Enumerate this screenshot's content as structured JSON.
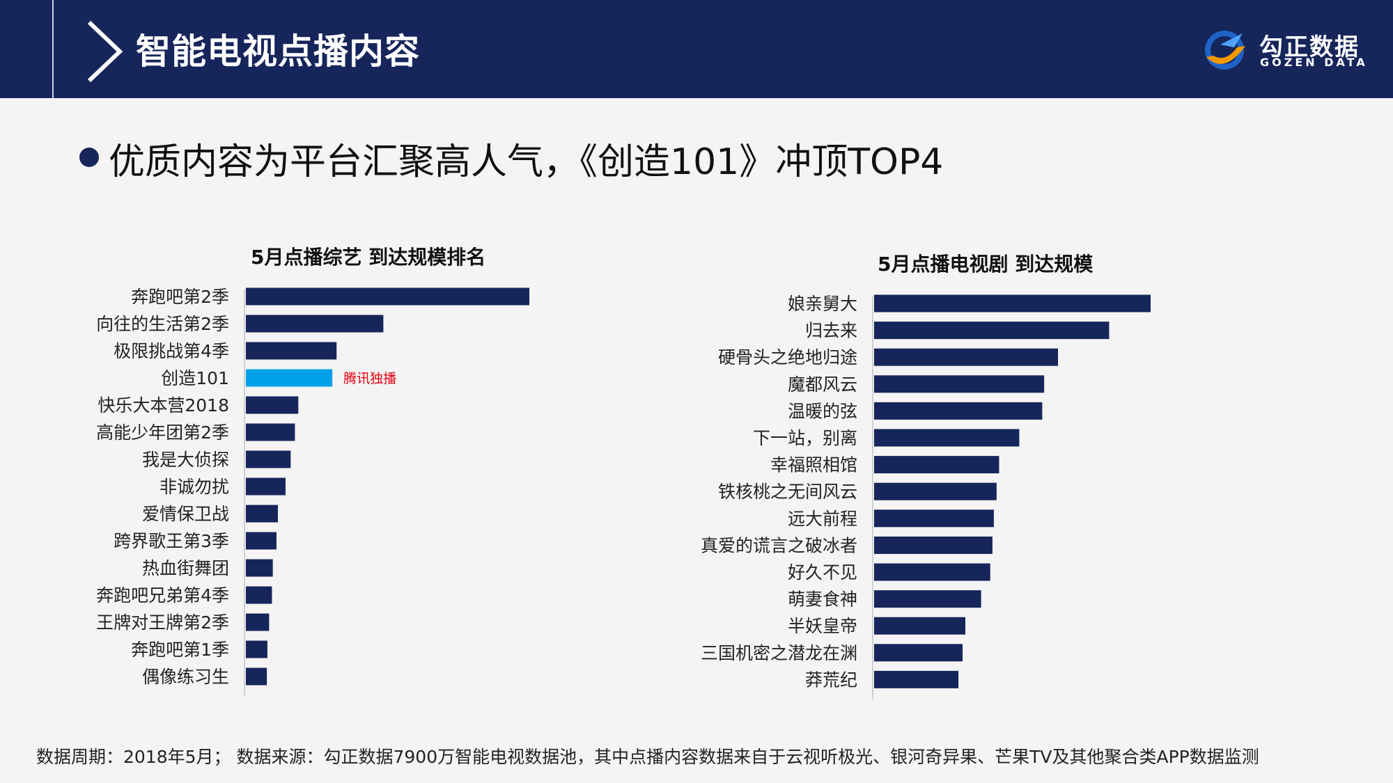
{
  "header": {
    "title": "智能电视点播内容",
    "logo_name": "勾正数据",
    "logo_sub": "GOZEN DATA"
  },
  "headline": "优质内容为平台汇聚高人气，《创造101》冲顶TOP4",
  "colors": {
    "header_bg": "#16255a",
    "bar": "#16255a",
    "highlight_bar": "#00a0e9",
    "annotation": "#e60012"
  },
  "chart_data": [
    {
      "type": "bar",
      "orientation": "horizontal",
      "title": "5月点播综艺 到达规模排名",
      "categories": [
        "奔跑吧第2季",
        "向往的生活第2季",
        "极限挑战第4季",
        "创造101",
        "快乐大本营2018",
        "高能少年团第2季",
        "我是大侦探",
        "非诚勿扰",
        "爱情保卫战",
        "跨界歌王第3季",
        "热血街舞团",
        "奔跑吧兄弟第4季",
        "王牌对王牌第2季",
        "奔跑吧第1季",
        "偶像练习生"
      ],
      "values": [
        100,
        48.5,
        32,
        30.5,
        18.5,
        17.3,
        15.8,
        14,
        11.3,
        10.8,
        9.5,
        9.2,
        8.2,
        7.6,
        7.4
      ],
      "highlight_index": 3,
      "annotations": [
        {
          "category": "创造101",
          "text": "腾讯独播"
        }
      ],
      "value_scale": "relative (no axis shown)"
    },
    {
      "type": "bar",
      "orientation": "horizontal",
      "title": "5月点播电视剧 到达规模",
      "categories": [
        "娘亲舅大",
        "归去来",
        "硬骨头之绝地归途",
        "魔都风云",
        "温暖的弦",
        "下一站，别离",
        "幸福照相馆",
        "铁核桃之无间风云",
        "远大前程",
        "真爱的谎言之破冰者",
        "好久不见",
        "萌妻食神",
        "半妖皇帝",
        "三国机密之潜龙在渊",
        "莽荒纪"
      ],
      "values": [
        100,
        85,
        66.5,
        61.5,
        60.8,
        52.5,
        45.2,
        44.3,
        43.3,
        42.8,
        42,
        38.7,
        33,
        32,
        30.5
      ],
      "value_scale": "relative (no axis shown)"
    }
  ],
  "footnote": "数据周期：2018年5月；  数据来源：勾正数据7900万智能电视数据池，其中点播内容数据来自于云视听极光、银河奇异果、芒果TV及其他聚合类APP数据监测"
}
